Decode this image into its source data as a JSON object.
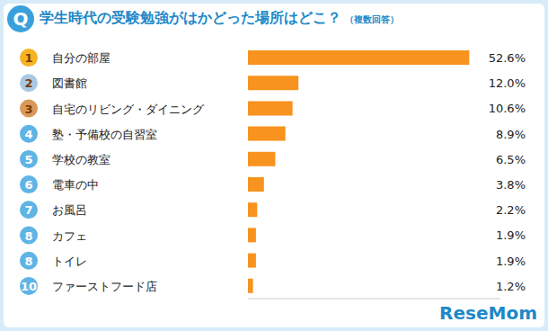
{
  "chart_data": {
    "type": "bar",
    "orientation": "horizontal",
    "title": "学生時代の受験勉強がはかどった場所はどこ？",
    "subtitle": "（複数回答）",
    "annotations": [
      "Q",
      "ReseMom"
    ],
    "ranks": [
      1,
      2,
      3,
      4,
      5,
      6,
      7,
      8,
      8,
      10
    ],
    "categories": [
      "自分の部屋",
      "図書館",
      "自宅のリビング・ダイニング",
      "塾・予備校の自習室",
      "学校の教室",
      "電車の中",
      "お風呂",
      "カフェ",
      "トイレ",
      "ファーストフード店"
    ],
    "values": [
      52.6,
      12.0,
      10.6,
      8.9,
      6.5,
      3.8,
      2.2,
      1.9,
      1.9,
      1.2
    ],
    "value_labels": [
      "52.6%",
      "12.0%",
      "10.6%",
      "8.9%",
      "6.5%",
      "3.8%",
      "2.2%",
      "1.9%",
      "1.9%",
      "1.2%"
    ],
    "color": "#f7931e",
    "xlim": [
      0,
      60
    ],
    "data_labels": true,
    "grid": false,
    "tick_labels": "y"
  }
}
